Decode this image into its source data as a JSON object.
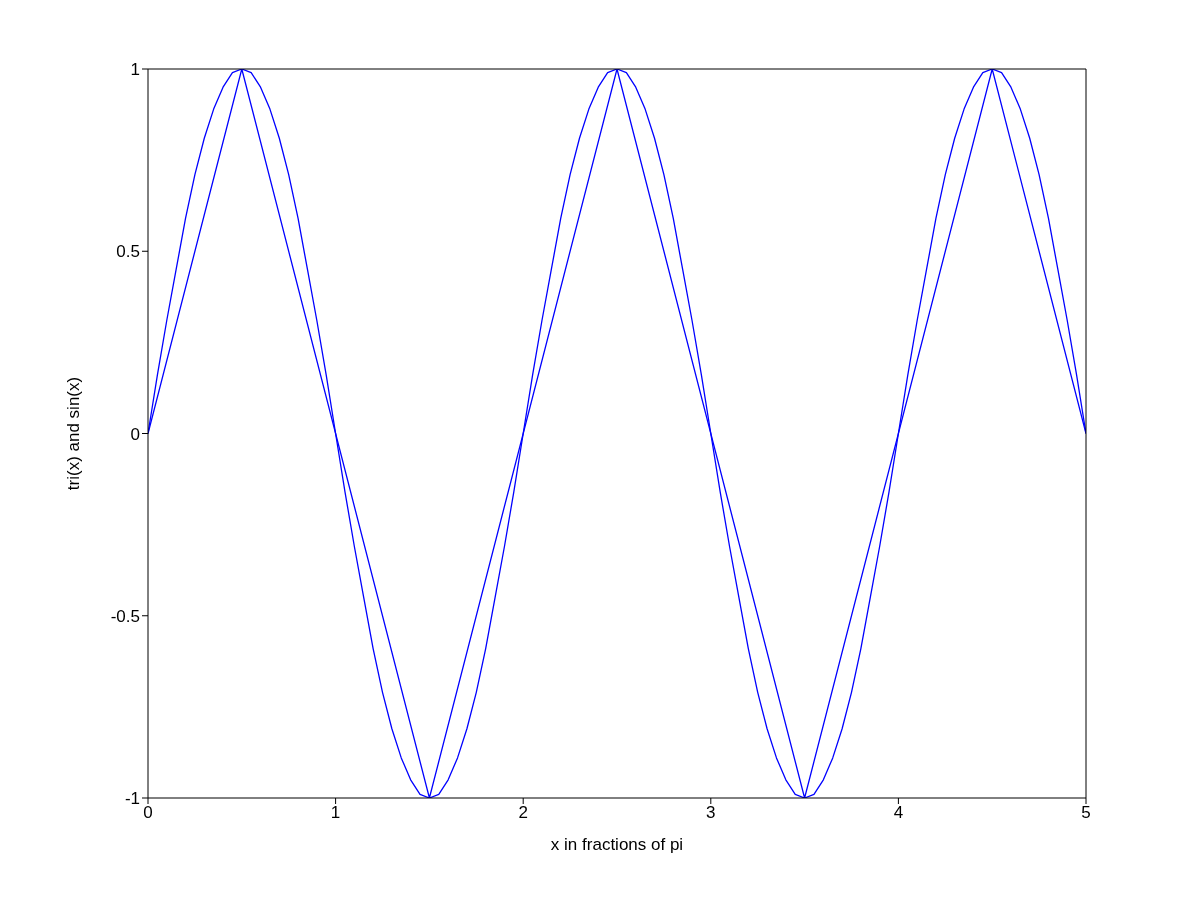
{
  "chart_data": {
    "type": "line",
    "xlabel": "x in fractions of pi",
    "ylabel": "tri(x) and sin(x)",
    "xlim": [
      0,
      5
    ],
    "ylim": [
      -1,
      1
    ],
    "xticks": [
      0,
      1,
      2,
      3,
      4,
      5
    ],
    "yticks": [
      -1,
      -0.5,
      0,
      0.5,
      1
    ],
    "series": [
      {
        "color": "#0000ff",
        "x": [
          0,
          0.5,
          1.5,
          2.5,
          3.5,
          4.5,
          5
        ],
        "values": [
          0,
          1,
          -1,
          1,
          -1,
          1,
          0
        ]
      },
      {
        "color": "#0000ff",
        "x": [
          0,
          0.05,
          0.1,
          0.15,
          0.2,
          0.25,
          0.3,
          0.35,
          0.4,
          0.45,
          0.5,
          0.55,
          0.6,
          0.65,
          0.7,
          0.75,
          0.8,
          0.85,
          0.9,
          0.95,
          1,
          1.05,
          1.1,
          1.15,
          1.2,
          1.25,
          1.3,
          1.35,
          1.4,
          1.45,
          1.5,
          1.55,
          1.6,
          1.65,
          1.7,
          1.75,
          1.8,
          1.85,
          1.9,
          1.95,
          2,
          2.05,
          2.1,
          2.15,
          2.2,
          2.25,
          2.3,
          2.35,
          2.4,
          2.45,
          2.5,
          2.55,
          2.6,
          2.65,
          2.7,
          2.75,
          2.8,
          2.85,
          2.9,
          2.95,
          3,
          3.05,
          3.1,
          3.15,
          3.2,
          3.25,
          3.3,
          3.35,
          3.4,
          3.45,
          3.5,
          3.55,
          3.6,
          3.65,
          3.7,
          3.75,
          3.8,
          3.85,
          3.9,
          3.95,
          4,
          4.05,
          4.1,
          4.15,
          4.2,
          4.25,
          4.3,
          4.35,
          4.4,
          4.45,
          4.5,
          4.55,
          4.6,
          4.65,
          4.7,
          4.75,
          4.8,
          4.85,
          4.9,
          4.95,
          5
        ],
        "values": [
          0,
          0.16,
          0.31,
          0.45,
          0.59,
          0.71,
          0.81,
          0.89,
          0.95,
          0.99,
          1,
          0.99,
          0.95,
          0.89,
          0.81,
          0.71,
          0.59,
          0.45,
          0.31,
          0.16,
          0,
          -0.16,
          -0.31,
          -0.45,
          -0.59,
          -0.71,
          -0.81,
          -0.89,
          -0.95,
          -0.99,
          -1,
          -0.99,
          -0.95,
          -0.89,
          -0.81,
          -0.71,
          -0.59,
          -0.45,
          -0.31,
          -0.16,
          0,
          0.16,
          0.31,
          0.45,
          0.59,
          0.71,
          0.81,
          0.89,
          0.95,
          0.99,
          1,
          0.99,
          0.95,
          0.89,
          0.81,
          0.71,
          0.59,
          0.45,
          0.31,
          0.16,
          0,
          -0.16,
          -0.31,
          -0.45,
          -0.59,
          -0.71,
          -0.81,
          -0.89,
          -0.95,
          -0.99,
          -1,
          -0.99,
          -0.95,
          -0.89,
          -0.81,
          -0.71,
          -0.59,
          -0.45,
          -0.31,
          -0.16,
          0,
          0.16,
          0.31,
          0.45,
          0.59,
          0.71,
          0.81,
          0.89,
          0.95,
          0.99,
          1,
          0.99,
          0.95,
          0.89,
          0.81,
          0.71,
          0.59,
          0.45,
          0.31,
          0.16,
          0
        ]
      }
    ]
  }
}
